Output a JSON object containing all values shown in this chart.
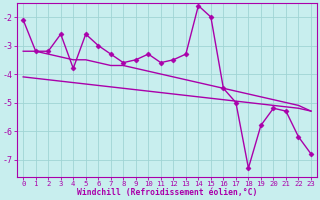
{
  "xlabel": "Windchill (Refroidissement éolien,°C)",
  "background_color": "#c8eeee",
  "grid_color": "#a0d4d4",
  "line_color": "#aa00aa",
  "x": [
    0,
    1,
    2,
    3,
    4,
    5,
    6,
    7,
    8,
    9,
    10,
    11,
    12,
    13,
    14,
    15,
    16,
    17,
    18,
    19,
    20,
    21,
    22,
    23
  ],
  "y_main": [
    -2.1,
    -3.2,
    -3.2,
    -2.6,
    -3.8,
    -2.6,
    -3.0,
    -3.3,
    -3.6,
    -3.5,
    -3.3,
    -3.6,
    -3.5,
    -3.3,
    -1.6,
    -2.0,
    -4.5,
    -5.0,
    -7.3,
    -5.8,
    -5.2,
    -5.3,
    -6.2,
    -6.8
  ],
  "y_smooth": [
    -3.2,
    -3.2,
    -3.3,
    -3.4,
    -3.5,
    -3.5,
    -3.6,
    -3.7,
    -3.7,
    -3.8,
    -3.9,
    -4.0,
    -4.1,
    -4.2,
    -4.3,
    -4.4,
    -4.5,
    -4.6,
    -4.7,
    -4.8,
    -4.9,
    -5.0,
    -5.1,
    -5.3
  ],
  "y_trend": [
    -4.1,
    -4.15,
    -4.2,
    -4.25,
    -4.3,
    -4.35,
    -4.4,
    -4.45,
    -4.5,
    -4.55,
    -4.6,
    -4.65,
    -4.7,
    -4.75,
    -4.8,
    -4.85,
    -4.9,
    -4.95,
    -5.0,
    -5.05,
    -5.1,
    -5.15,
    -5.2,
    -5.3
  ],
  "ylim": [
    -7.6,
    -1.5
  ],
  "xlim": [
    -0.5,
    23.5
  ],
  "yticks": [
    -7,
    -6,
    -5,
    -4,
    -3,
    -2
  ],
  "xticks": [
    0,
    1,
    2,
    3,
    4,
    5,
    6,
    7,
    8,
    9,
    10,
    11,
    12,
    13,
    14,
    15,
    16,
    17,
    18,
    19,
    20,
    21,
    22,
    23
  ],
  "marker": "D",
  "marker_size": 2.5,
  "linewidth": 1.0
}
